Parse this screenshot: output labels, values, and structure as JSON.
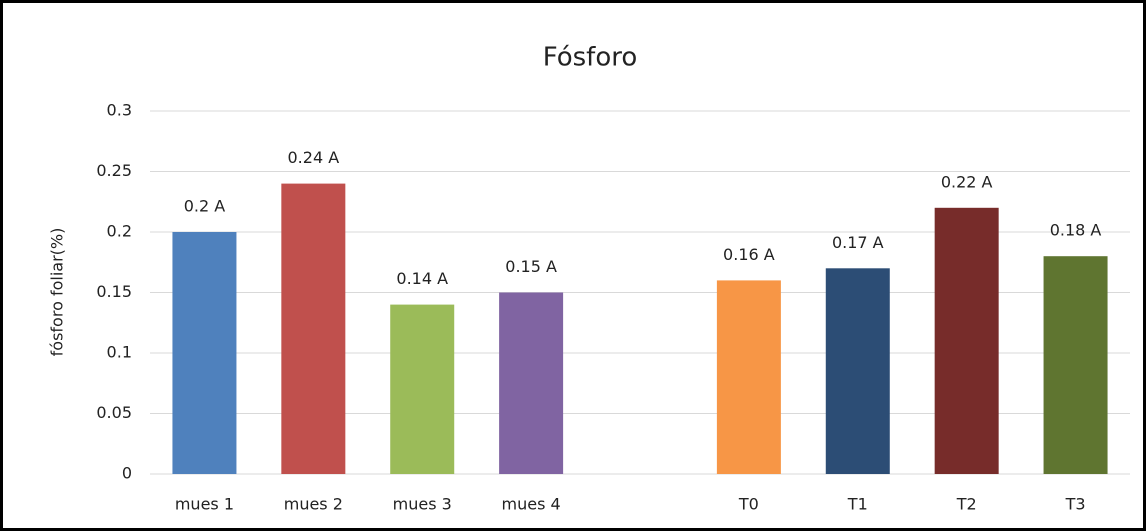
{
  "chart_data": {
    "type": "bar",
    "title": "Fósforo",
    "y_label": "fósforo foliar(%)",
    "categories": [
      "mues 1",
      "mues 2",
      "mues 3",
      "mues 4",
      null,
      "T0",
      "T1",
      "T2",
      "T3"
    ],
    "values": [
      0.2,
      0.24,
      0.14,
      0.15,
      null,
      0.16,
      0.17,
      0.22,
      0.18
    ],
    "value_labels": [
      "0.2 A",
      "0.24 A",
      "0.14 A",
      "0.15 A",
      null,
      "0.16 A",
      "0.17 A",
      "0.22 A",
      "0.18 A"
    ],
    "colors": [
      "#4f81bd",
      "#c0504d",
      "#9bbb59",
      "#8064a2",
      null,
      "#f79646",
      "#2c4d75",
      "#772c2a",
      "#5f7530"
    ],
    "ylim": [
      0,
      0.3
    ],
    "yticks": [
      0,
      0.05,
      0.1,
      0.15,
      0.2,
      0.25,
      0.3
    ],
    "grid": true
  }
}
